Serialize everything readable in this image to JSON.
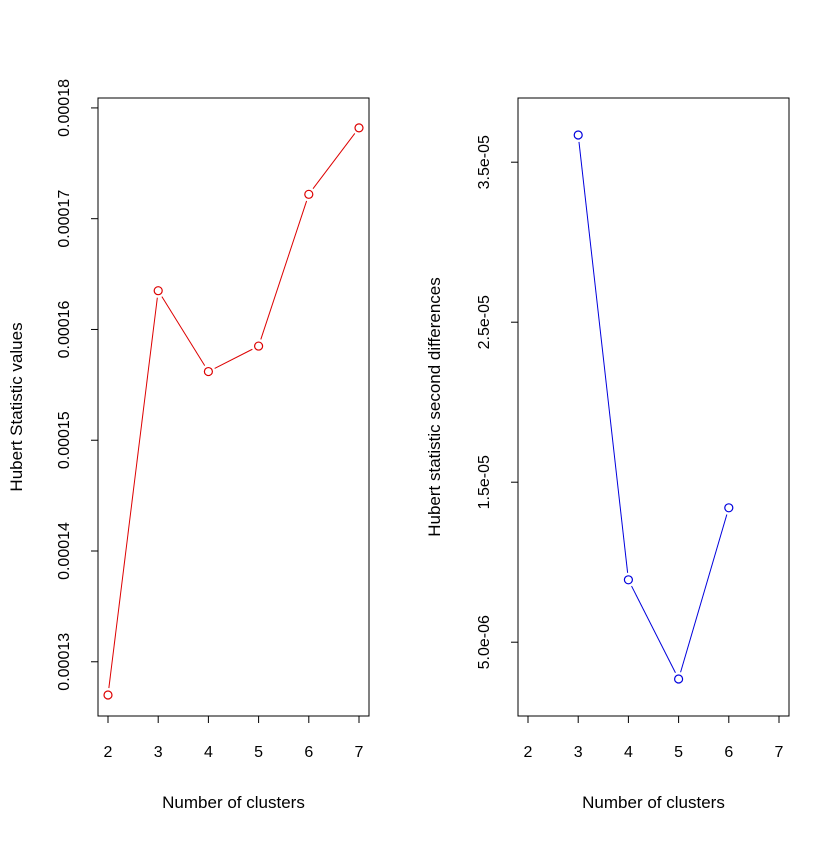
{
  "chart_data": [
    {
      "type": "line",
      "title": "",
      "xlabel": "Number of clusters",
      "ylabel": "Hubert Statistic values",
      "xlim": [
        2,
        7
      ],
      "ylim": [
        0.000127,
        0.000179
      ],
      "x_ticks": [
        2,
        3,
        4,
        5,
        6,
        7
      ],
      "x_tick_labels": [
        "2",
        "3",
        "4",
        "5",
        "6",
        "7"
      ],
      "y_ticks": [
        0.00013,
        0.00014,
        0.00015,
        0.00016,
        0.00017,
        0.00018
      ],
      "y_tick_labels": [
        "0.00013",
        "0.00014",
        "0.00015",
        "0.00016",
        "0.00017",
        "0.00018"
      ],
      "grid": false,
      "color": "#dd0000",
      "series": [
        {
          "x": [
            2,
            3,
            4,
            5,
            6,
            7
          ],
          "values": [
            0.000127,
            0.0001635,
            0.0001562,
            0.0001585,
            0.0001722,
            0.0001782
          ]
        }
      ]
    },
    {
      "type": "line",
      "title": "",
      "xlabel": "Number of clusters",
      "ylabel": "Hubert statistic second differences",
      "xlim": [
        2,
        7
      ],
      "ylim": [
        1.7e-06,
        3.77e-05
      ],
      "x_ticks": [
        2,
        3,
        4,
        5,
        6,
        7
      ],
      "x_tick_labels": [
        "2",
        "3",
        "4",
        "5",
        "6",
        "7"
      ],
      "y_ticks": [
        5e-06,
        1.5e-05,
        2.5e-05,
        3.5e-05
      ],
      "y_tick_labels": [
        "5.0e-06",
        "1.5e-05",
        "2.5e-05",
        "3.5e-05"
      ],
      "grid": false,
      "color": "#0000dd",
      "series": [
        {
          "x": [
            3,
            4,
            5,
            6
          ],
          "values": [
            3.67e-05,
            8.9e-06,
            2.7e-06,
            1.34e-05
          ]
        }
      ]
    }
  ]
}
